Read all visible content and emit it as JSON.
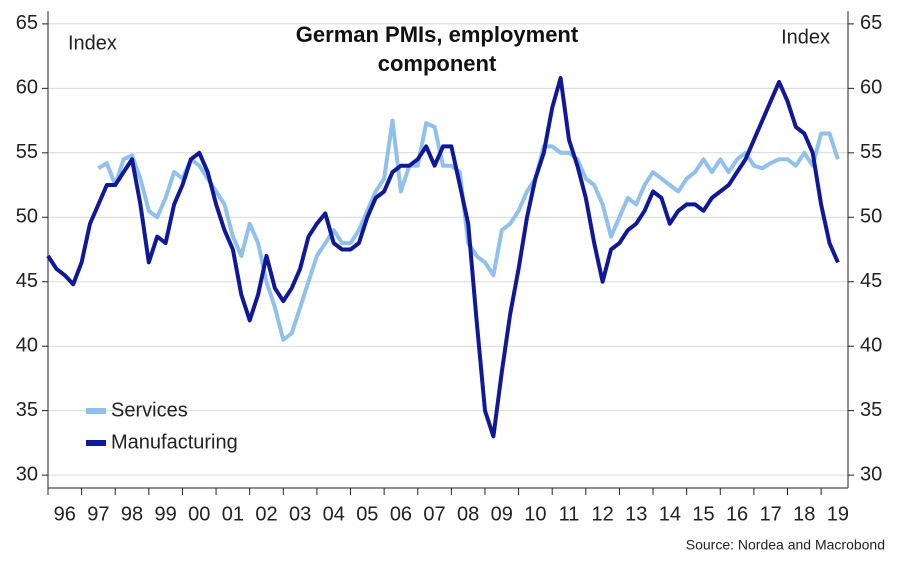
{
  "chart_data": {
    "type": "line",
    "title": "German PMIs, employment component",
    "y_axis_label": "Index",
    "y2_axis_label": "Index",
    "source": "Source: Nordea and Macrobond",
    "xlim": [
      1996,
      2019.8
    ],
    "xticks": [
      {
        "value": 1996,
        "label": "96"
      },
      {
        "value": 1997,
        "label": "97"
      },
      {
        "value": 1998,
        "label": "98"
      },
      {
        "value": 1999,
        "label": "99"
      },
      {
        "value": 2000,
        "label": "00"
      },
      {
        "value": 2001,
        "label": "01"
      },
      {
        "value": 2002,
        "label": "02"
      },
      {
        "value": 2003,
        "label": "03"
      },
      {
        "value": 2004,
        "label": "04"
      },
      {
        "value": 2005,
        "label": "05"
      },
      {
        "value": 2006,
        "label": "06"
      },
      {
        "value": 2007,
        "label": "07"
      },
      {
        "value": 2008,
        "label": "08"
      },
      {
        "value": 2009,
        "label": "09"
      },
      {
        "value": 2010,
        "label": "10"
      },
      {
        "value": 2011,
        "label": "11"
      },
      {
        "value": 2012,
        "label": "12"
      },
      {
        "value": 2013,
        "label": "13"
      },
      {
        "value": 2014,
        "label": "14"
      },
      {
        "value": 2015,
        "label": "15"
      },
      {
        "value": 2016,
        "label": "16"
      },
      {
        "value": 2017,
        "label": "17"
      },
      {
        "value": 2018,
        "label": "18"
      },
      {
        "value": 2019,
        "label": "19"
      }
    ],
    "ylim": [
      29,
      66
    ],
    "yticks": [
      30,
      35,
      40,
      45,
      50,
      55,
      60,
      65
    ],
    "y2lim": [
      29,
      66
    ],
    "y2ticks": [
      30,
      35,
      40,
      45,
      50,
      55,
      60,
      65
    ],
    "grid": true,
    "legend": "lower left",
    "x": [
      1996,
      1996.25,
      1996.5,
      1996.75,
      1997,
      1997.25,
      1997.5,
      1997.75,
      1998,
      1998.25,
      1998.5,
      1998.75,
      1999,
      1999.25,
      1999.5,
      1999.75,
      2000,
      2000.25,
      2000.5,
      2000.75,
      2001,
      2001.25,
      2001.5,
      2001.75,
      2002,
      2002.25,
      2002.5,
      2002.75,
      2003,
      2003.25,
      2003.5,
      2003.75,
      2004,
      2004.25,
      2004.5,
      2004.75,
      2005,
      2005.25,
      2005.5,
      2005.75,
      2006,
      2006.25,
      2006.5,
      2006.75,
      2007,
      2007.25,
      2007.5,
      2007.75,
      2008,
      2008.25,
      2008.5,
      2008.75,
      2009,
      2009.25,
      2009.5,
      2009.75,
      2010,
      2010.25,
      2010.5,
      2010.75,
      2011,
      2011.25,
      2011.5,
      2011.75,
      2012,
      2012.25,
      2012.5,
      2012.75,
      2013,
      2013.25,
      2013.5,
      2013.75,
      2014,
      2014.25,
      2014.5,
      2014.75,
      2015,
      2015.25,
      2015.5,
      2015.75,
      2016,
      2016.25,
      2016.5,
      2016.75,
      2017,
      2017.25,
      2017.5,
      2017.75,
      2018,
      2018.25,
      2018.5,
      2018.75,
      2019,
      2019.25,
      2019.5
    ],
    "series": [
      {
        "name": "Services",
        "color": "#8fc1ec",
        "values": [
          null,
          null,
          null,
          null,
          null,
          null,
          53.8,
          54.2,
          52.5,
          54.5,
          54.8,
          53,
          50.5,
          50,
          51.5,
          53.5,
          53,
          54.5,
          54,
          53,
          52,
          51,
          48.5,
          47,
          49.5,
          48,
          45,
          43,
          40.5,
          41,
          43,
          45,
          47,
          48,
          49,
          48,
          48,
          49,
          50.5,
          52,
          53,
          57.5,
          52,
          54,
          54,
          57.3,
          57,
          54,
          54,
          53.5,
          48,
          47,
          46.5,
          45.5,
          49,
          49.5,
          50.5,
          52,
          53,
          55.5,
          55.5,
          55,
          55,
          54.5,
          53,
          52.5,
          51,
          48.5,
          50,
          51.5,
          51,
          52.5,
          53.5,
          53,
          52.5,
          52,
          53,
          53.5,
          54.5,
          53.5,
          54.5,
          53.5,
          54.5,
          55,
          54,
          53.8,
          54.2,
          54.5,
          54.5,
          54,
          55,
          54,
          56.5,
          56.5,
          54.5
        ]
      },
      {
        "name": "Manufacturing",
        "color": "#10189a",
        "values": [
          47,
          46,
          45.5,
          44.8,
          46.5,
          49.5,
          51,
          52.5,
          52.5,
          53.5,
          54.5,
          51,
          46.5,
          48.5,
          48,
          51,
          52.5,
          54.5,
          55,
          53.5,
          51,
          49,
          47.5,
          44,
          42,
          44,
          47,
          44.5,
          43.5,
          44.5,
          46,
          48.5,
          49.5,
          50.3,
          48,
          47.5,
          47.5,
          48,
          50,
          51.5,
          52,
          53.5,
          54,
          54,
          54.5,
          55.5,
          54,
          55.5,
          55.5,
          52.5,
          49.5,
          42,
          35,
          33,
          38,
          42.5,
          46,
          50,
          53,
          55,
          58.5,
          60.8,
          56,
          54,
          51.5,
          48,
          45,
          47.5,
          48,
          49,
          49.5,
          50.5,
          52,
          51.5,
          49.5,
          50.5,
          51,
          51,
          50.5,
          51.5,
          52,
          52.5,
          53.5,
          54.5,
          56,
          57.5,
          59,
          60.5,
          59,
          57,
          56.5,
          55,
          51,
          48,
          46.5
        ]
      }
    ]
  }
}
